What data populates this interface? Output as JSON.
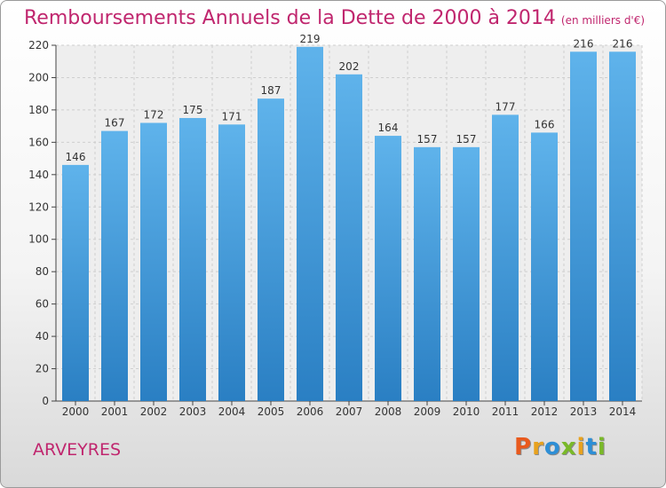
{
  "header": {
    "title": "Remboursements Annuels de la Dette de 2000 à 2014",
    "unit": "(en milliers d'€)"
  },
  "footer": {
    "place": "ARVEYRES",
    "logo": "Proxiti",
    "logo_colors": [
      "#e85a1e",
      "#e8a21e",
      "#2e8fd6",
      "#7ab929",
      "#e8a21e",
      "#2e8fd6",
      "#7ab929"
    ]
  },
  "colors": {
    "bar_top": "#5fb3eb",
    "bar_bottom": "#2a7fc3",
    "title": "#c0266e"
  },
  "chart_data": {
    "type": "bar",
    "categories": [
      "2000",
      "2001",
      "2002",
      "2003",
      "2004",
      "2005",
      "2006",
      "2007",
      "2008",
      "2009",
      "2010",
      "2011",
      "2012",
      "2013",
      "2014"
    ],
    "values": [
      146,
      167,
      172,
      175,
      171,
      187,
      219,
      202,
      164,
      157,
      157,
      177,
      166,
      216,
      216
    ],
    "title": "Remboursements Annuels de la Dette de 2000 à 2014",
    "subtitle": "(en milliers d'€)",
    "ylim": [
      0,
      220
    ],
    "yticks": [
      0,
      20,
      40,
      60,
      80,
      100,
      120,
      140,
      160,
      180,
      200,
      220
    ],
    "grid": true,
    "data_labels": true
  }
}
